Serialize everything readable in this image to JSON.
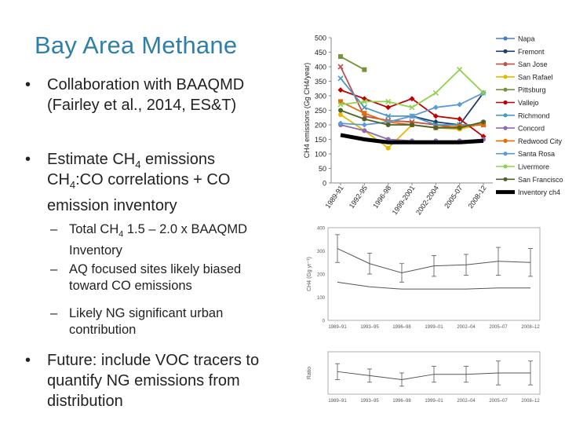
{
  "slide": {
    "title": "Bay Area Methane",
    "bullets": [
      {
        "text": "Collaboration with BAAQMD (Fairley et al., 2014, ES&T)"
      },
      {
        "pre": "Estimate CH",
        "sub": "4",
        "post": " emissions"
      },
      {
        "pre": "CH",
        "sub": "4",
        "post": ":CO correlations + CO emission inventory"
      },
      {
        "text": "Future: include VOC tracers to quantify NG emissions from distribution"
      }
    ],
    "subbullets": [
      {
        "pre": "Total CH",
        "sub": "4",
        "post": " 1.5 – 2.0 x BAAQMD Inventory"
      },
      {
        "text": "AQ focused sites likely biased toward CO emissions"
      },
      {
        "text": "Likely NG significant urban contribution"
      }
    ]
  },
  "chart_data": [
    {
      "type": "line",
      "ylabel": "CH4 emissions (Gg CH4/year)",
      "ylim": [
        0,
        500
      ],
      "yticks": [
        0,
        50,
        100,
        150,
        200,
        250,
        300,
        350,
        400,
        450,
        500
      ],
      "categories": [
        "1989-91",
        "1992-95",
        "1996-98",
        "1999-2001",
        "2002-2004",
        "2005-07",
        "2008-12"
      ],
      "xlabels_shown": [
        "1989-91",
        "1992-95",
        "1996-98",
        "1999-2001",
        "2002-2004",
        "2005-07",
        "2008-12"
      ],
      "legend_position": "right",
      "series": [
        {
          "name": "Napa",
          "color": "#4a7ebb",
          "values": [
            null,
            null,
            null,
            null,
            null,
            null,
            null
          ]
        },
        {
          "name": "Fremont",
          "color": "#1f3b6e",
          "values": [
            null,
            null,
            null,
            230,
            210,
            200,
            310
          ]
        },
        {
          "name": "San Jose",
          "color": "#c0504d",
          "values": [
            400,
            230,
            215,
            210,
            200,
            190,
            205
          ]
        },
        {
          "name": "San Rafael",
          "color": "#e6b800",
          "values": [
            235,
            180,
            120,
            200,
            190,
            185,
            205
          ]
        },
        {
          "name": "Pittsburg",
          "color": "#76923c",
          "values": [
            435,
            390,
            null,
            null,
            null,
            null,
            null
          ]
        },
        {
          "name": "Vallejo",
          "color": "#c00000",
          "values": [
            320,
            290,
            260,
            290,
            230,
            220,
            160
          ]
        },
        {
          "name": "Richmond",
          "color": "#4a9ac0",
          "values": [
            360,
            260,
            230,
            230,
            200,
            200,
            200
          ]
        },
        {
          "name": "Concord",
          "color": "#8e6ab3",
          "values": [
            200,
            180,
            150,
            145,
            145,
            145,
            150
          ]
        },
        {
          "name": "Redwood City",
          "color": "#e36c09",
          "values": [
            280,
            240,
            210,
            200,
            190,
            195,
            200
          ]
        },
        {
          "name": "Santa Rosa",
          "color": "#5b9bd5",
          "values": [
            205,
            200,
            210,
            230,
            260,
            270,
            310
          ]
        },
        {
          "name": "Livermore",
          "color": "#92d050",
          "values": [
            270,
            280,
            280,
            260,
            310,
            390,
            310
          ]
        },
        {
          "name": "San Francisco",
          "color": "#4f6228",
          "values": [
            250,
            220,
            200,
            200,
            190,
            190,
            210
          ]
        },
        {
          "name": "Inventory ch4",
          "color": "#000000",
          "values": [
            165,
            150,
            140,
            140,
            140,
            140,
            145
          ]
        }
      ]
    },
    {
      "type": "line",
      "ylabel": "CH4 (Gg yr⁻¹)",
      "ylim": [
        0,
        400
      ],
      "yticks": [
        0,
        100,
        200,
        300,
        400
      ],
      "categories": [
        "1989–91",
        "1993–95",
        "1996–98",
        "1999–01",
        "2002–04",
        "2005–07",
        "2008–12"
      ],
      "series": [
        {
          "values": [
            310,
            245,
            205,
            235,
            240,
            255,
            250
          ],
          "err": [
            60,
            45,
            40,
            45,
            45,
            60,
            60
          ]
        },
        {
          "values": [
            165,
            145,
            135,
            135,
            135,
            140,
            140
          ]
        }
      ]
    },
    {
      "type": "line",
      "ylabel": "Ratio",
      "categories": [
        "1989–91",
        "1993–95",
        "1996–98",
        "1999–01",
        "2002–04",
        "2005–07",
        "2008–12"
      ],
      "series": [
        {
          "values": [
            1.85,
            1.7,
            1.55,
            1.75,
            1.75,
            1.8,
            1.8
          ],
          "err": [
            0.3,
            0.25,
            0.25,
            0.3,
            0.3,
            0.45,
            0.45
          ]
        }
      ]
    }
  ]
}
